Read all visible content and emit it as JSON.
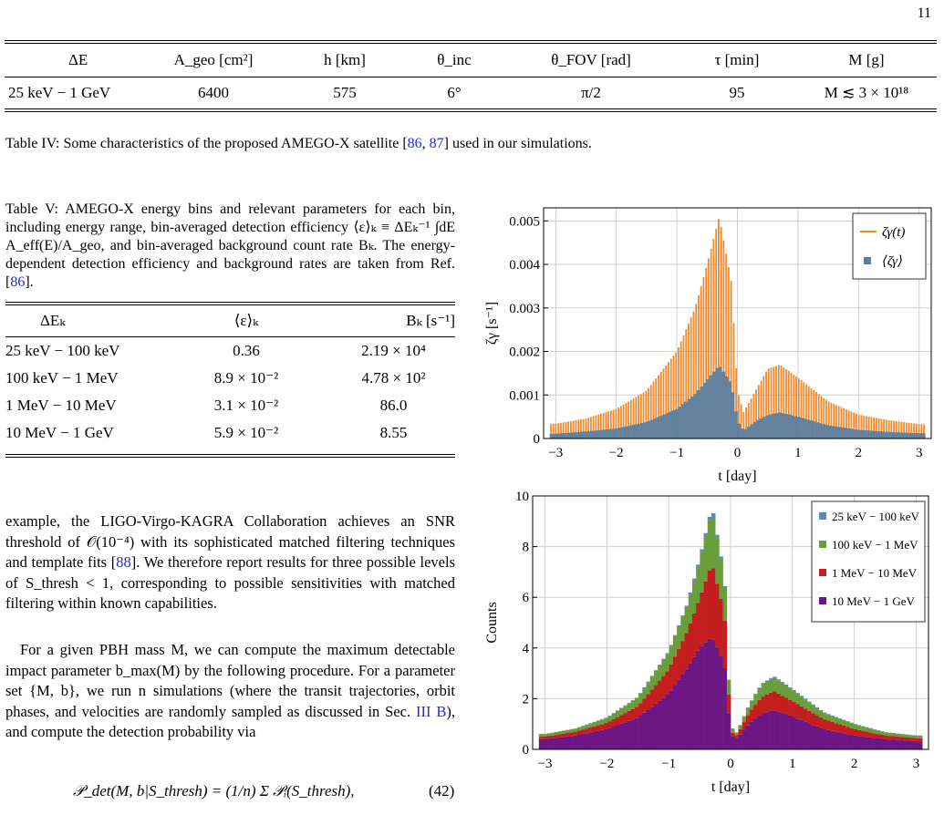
{
  "page_number": "11",
  "table4": {
    "headers": [
      "ΔE",
      "A_geo [cm²]",
      "h [km]",
      "θ_inc",
      "θ_FOV [rad]",
      "τ [min]",
      "M [g]"
    ],
    "row": [
      "25 keV − 1 GeV",
      "6400",
      "575",
      "6°",
      "π/2",
      "95",
      "M ≲ 3 × 10¹⁸"
    ],
    "caption_prefix": "Table IV: Some characteristics of the proposed AMEGO-X satellite [",
    "ref1": "86",
    "comma": ", ",
    "ref2": "87",
    "caption_suffix": "] used in our simulations."
  },
  "table5": {
    "caption_part1": "Table V: AMEGO-X energy bins and relevant parameters for each bin, including energy range, bin-averaged detection efficiency ⟨ε⟩ₖ ≡ ΔEₖ⁻¹ ∫dE A_eff(E)/A_geo, and bin-averaged background count rate Bₖ. The energy-dependent detection efficiency and background rates are taken from Ref. [",
    "caption_ref": "86",
    "caption_end": "].",
    "headers": [
      "ΔEₖ",
      "⟨ε⟩ₖ",
      "Bₖ [s⁻¹]"
    ],
    "rows": [
      [
        "25 keV − 100 keV",
        "0.36",
        "2.19 × 10⁴"
      ],
      [
        "100 keV − 1 MeV",
        "8.9 × 10⁻²",
        "4.78 × 10²"
      ],
      [
        "1 MeV − 10 MeV",
        "3.1 × 10⁻²",
        "86.0"
      ],
      [
        "10 MeV − 1 GeV",
        "5.9 × 10⁻²",
        "8.55"
      ]
    ]
  },
  "body": {
    "p1_a": "example, the LIGO-Virgo-KAGRA Collaboration achieves an SNR threshold of 𝒪(10⁻⁴) with its sophisticated matched filtering techniques and template fits [",
    "p1_ref": "88",
    "p1_b": "]. We therefore report results for three possible levels of S_thresh < 1, corresponding to possible sensitivities with matched filtering within known capabilities.",
    "p2_a": "For a given PBH mass M, we can compute the maximum detectable impact parameter b_max(M) by the following procedure. For a parameter set {M, b}, we run n simulations (where the transit trajectories, orbit phases, and velocities are randomly sampled as discussed in Sec. ",
    "p2_ref": "III B",
    "p2_b": "), and compute the detection probability via",
    "equation": "𝒫_det(M, b|S_thresh) = (1/n) Σ 𝒫ᵢ(S_thresh),",
    "eq_number": "(42)"
  },
  "chart_data": [
    {
      "type": "bar",
      "xlabel": "t [day]",
      "ylabel": "ζγ [s⁻¹]",
      "xlim": [
        -3.2,
        3.2
      ],
      "ylim": [
        0,
        0.0053
      ],
      "xticks": [
        "−3",
        "−2",
        "−1",
        "0",
        "1",
        "2",
        "3"
      ],
      "yticks": [
        "0",
        "0.001",
        "0.002",
        "0.003",
        "0.004",
        "0.005"
      ],
      "grid": true,
      "legend": "top-right",
      "series": [
        {
          "name": "ζγ(t)",
          "color": "#f28a2e",
          "x": [
            -3.0,
            -2.5,
            -2.0,
            -1.5,
            -1.0,
            -0.7,
            -0.5,
            -0.3,
            -0.1,
            0.0,
            0.1,
            0.3,
            0.5,
            0.7,
            1.0,
            1.5,
            2.0,
            2.5,
            3.0
          ],
          "values": [
            0.00034,
            0.00046,
            0.00068,
            0.0011,
            0.002,
            0.003,
            0.004,
            0.0051,
            0.0036,
            0.0011,
            0.0006,
            0.0011,
            0.0016,
            0.0017,
            0.0014,
            0.00085,
            0.00055,
            0.00042,
            0.00033
          ]
        },
        {
          "name": "⟨ζγ⟩",
          "color": "#5d7f9f",
          "x": [
            -3.0,
            -2.5,
            -2.0,
            -1.5,
            -1.0,
            -0.7,
            -0.5,
            -0.3,
            -0.1,
            0.0,
            0.1,
            0.3,
            0.5,
            0.7,
            1.0,
            1.5,
            2.0,
            2.5,
            3.0
          ],
          "values": [
            0.00011,
            0.00016,
            0.00023,
            0.00038,
            0.00068,
            0.00102,
            0.00135,
            0.00168,
            0.00125,
            0.0004,
            0.00018,
            0.0004,
            0.00054,
            0.0006,
            0.0005,
            0.0003,
            0.0002,
            0.00015,
            0.00012
          ]
        }
      ]
    },
    {
      "type": "bar",
      "stacked": true,
      "xlabel": "t [day]",
      "ylabel": "Counts",
      "xlim": [
        -3.2,
        3.2
      ],
      "ylim": [
        0,
        10
      ],
      "xticks": [
        "−3",
        "−2",
        "−1",
        "0",
        "1",
        "2",
        "3"
      ],
      "yticks": [
        "0",
        "2",
        "4",
        "6",
        "8",
        "10"
      ],
      "grid": true,
      "legend": "top-right",
      "x": [
        -3.0,
        -2.5,
        -2.0,
        -1.5,
        -1.0,
        -0.7,
        -0.5,
        -0.3,
        -0.1,
        0.0,
        0.1,
        0.3,
        0.5,
        0.7,
        1.0,
        1.5,
        2.0,
        2.5,
        3.0
      ],
      "series": [
        {
          "name": "10 MeV − 1 GeV",
          "color": "#6c1783",
          "values": [
            0.4,
            0.55,
            0.8,
            1.25,
            2.2,
            3.2,
            4.0,
            4.45,
            3.4,
            0.55,
            0.45,
            1.0,
            1.4,
            1.55,
            1.3,
            0.8,
            0.55,
            0.4,
            0.32
          ]
        },
        {
          "name": "1 MeV − 10 MeV",
          "color": "#c41e1e",
          "values": [
            0.1,
            0.15,
            0.25,
            0.45,
            0.95,
            1.45,
            1.95,
            2.9,
            2.0,
            0.15,
            0.1,
            0.45,
            0.65,
            0.75,
            0.6,
            0.4,
            0.25,
            0.15,
            0.12
          ]
        },
        {
          "name": "100 keV − 1 MeV",
          "color": "#6a9d3c",
          "values": [
            0.1,
            0.12,
            0.2,
            0.35,
            0.7,
            1.05,
            1.5,
            2.1,
            1.4,
            0.2,
            0.1,
            0.3,
            0.5,
            0.55,
            0.45,
            0.25,
            0.2,
            0.12,
            0.1
          ]
        },
        {
          "name": "25 keV − 100 keV",
          "color": "#5b88c4",
          "values": [
            0.01,
            0.01,
            0.01,
            0.02,
            0.03,
            0.05,
            0.08,
            0.15,
            0.06,
            0.0,
            0.0,
            0.02,
            0.03,
            0.04,
            0.03,
            0.02,
            0.01,
            0.01,
            0.01
          ]
        }
      ]
    }
  ]
}
